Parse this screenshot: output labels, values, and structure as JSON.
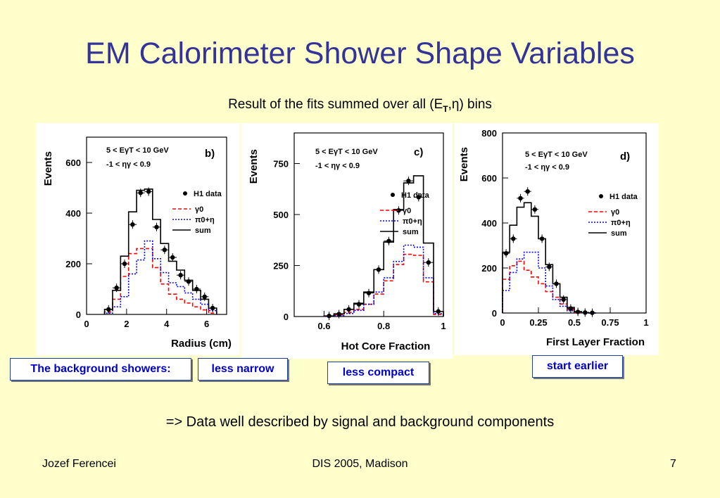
{
  "title": "EM Calorimeter Shower Shape Variables",
  "subtitle": {
    "prefix": "Result of the fits summed over all (E",
    "sub": "T",
    "suffix": ",η) bins"
  },
  "labels": {
    "background": "The background showers:",
    "narrow": "less narrow",
    "compact": "less compact",
    "earlier": "start earlier"
  },
  "conclusion": "=> Data well described by signal and background components",
  "footer": {
    "author": "Jozef Ferencei",
    "conference": "DIS 2005, Madison",
    "page": "7"
  },
  "colors": {
    "title": "#333399",
    "box_text": "#0000cc",
    "gamma": "#ff0000",
    "pi": "#0000ff"
  },
  "chart_data": [
    {
      "type": "histogram",
      "panel": "b)",
      "xlabel": "Radius (cm)",
      "ylabel": "Events",
      "xlim": [
        0,
        7
      ],
      "ylim": [
        0,
        700
      ],
      "xticks": [
        "0",
        "2",
        "4",
        "6"
      ],
      "yticks": [
        "0",
        "200",
        "400",
        "600"
      ],
      "cuts": [
        "5 < EγT < 10 GeV",
        "-1 < ηγ < 0.9"
      ],
      "legend": [
        "H1 data",
        "γ0",
        "π0+η",
        "sum"
      ],
      "bin_edges": [
        0.9,
        1.3,
        1.7,
        2.1,
        2.5,
        2.9,
        3.3,
        3.7,
        4.1,
        4.5,
        4.9,
        5.3,
        5.7,
        6.1,
        6.5
      ],
      "series": [
        {
          "name": "H1 data",
          "style": "points",
          "x": [
            1.1,
            1.5,
            1.9,
            2.3,
            2.7,
            3.1,
            3.5,
            3.9,
            4.3,
            4.7,
            5.1,
            5.5,
            5.9,
            6.3
          ],
          "values": [
            20,
            105,
            200,
            355,
            480,
            485,
            345,
            255,
            225,
            155,
            130,
            100,
            70,
            25
          ]
        },
        {
          "name": "γ0",
          "style": "dashed",
          "values": [
            10,
            60,
            150,
            240,
            260,
            260,
            185,
            120,
            80,
            60,
            45,
            30,
            18,
            5
          ]
        },
        {
          "name": "π0+η",
          "style": "dotted",
          "values": [
            5,
            30,
            70,
            160,
            215,
            290,
            220,
            165,
            125,
            110,
            85,
            60,
            40,
            15
          ]
        },
        {
          "name": "sum",
          "style": "solid",
          "values": [
            20,
            95,
            230,
            405,
            490,
            495,
            375,
            280,
            210,
            175,
            135,
            95,
            60,
            25
          ]
        }
      ]
    },
    {
      "type": "histogram",
      "panel": "c)",
      "xlabel": "Hot Core Fraction",
      "ylabel": "Events",
      "xlim": [
        0.5,
        1.0
      ],
      "ylim": [
        0,
        900
      ],
      "xticks": [
        "0.6",
        "0.8",
        "1"
      ],
      "yticks": [
        "0",
        "250",
        "500",
        "750"
      ],
      "cuts": [
        "5 < EγT < 10 GeV",
        "-1 < ηγ < 0.9"
      ],
      "legend": [
        "H1 data",
        "γ0",
        "π0+η",
        "sum"
      ],
      "bin_edges": [
        0.6,
        0.633,
        0.667,
        0.7,
        0.733,
        0.767,
        0.8,
        0.833,
        0.867,
        0.9,
        0.933,
        0.967,
        1.0
      ],
      "series": [
        {
          "name": "H1 data",
          "style": "points",
          "x": [
            0.617,
            0.65,
            0.683,
            0.717,
            0.75,
            0.783,
            0.817,
            0.85,
            0.883,
            0.917,
            0.95,
            0.983
          ],
          "values": [
            3,
            12,
            35,
            60,
            115,
            230,
            370,
            520,
            665,
            585,
            265,
            25
          ]
        },
        {
          "name": "γ0",
          "style": "dashed",
          "values": [
            2,
            8,
            20,
            35,
            60,
            110,
            175,
            255,
            305,
            300,
            170,
            10
          ]
        },
        {
          "name": "π0+η",
          "style": "dotted",
          "values": [
            1,
            5,
            15,
            30,
            60,
            120,
            190,
            270,
            350,
            340,
            190,
            15
          ]
        },
        {
          "name": "sum",
          "style": "solid",
          "values": [
            3,
            13,
            35,
            65,
            120,
            230,
            365,
            525,
            655,
            690,
            360,
            25
          ]
        }
      ]
    },
    {
      "type": "histogram",
      "panel": "d)",
      "xlabel": "First Layer Fraction",
      "ylabel": "Events",
      "xlim": [
        0,
        1.0
      ],
      "ylim": [
        0,
        800
      ],
      "xticks": [
        "0",
        "0.25",
        "0.5",
        "0.75",
        "1"
      ],
      "yticks": [
        "0",
        "200",
        "400",
        "600",
        "800"
      ],
      "cuts": [
        "5 < EγT < 10 GeV",
        "-1 < ηγ < 0.9"
      ],
      "legend": [
        "H1 data",
        "γ0",
        "π0+η",
        "sum"
      ],
      "bin_edges": [
        0.0,
        0.05,
        0.1,
        0.15,
        0.2,
        0.25,
        0.3,
        0.35,
        0.4,
        0.45,
        0.5,
        0.55,
        0.6,
        0.65
      ],
      "series": [
        {
          "name": "H1 data",
          "style": "points",
          "x": [
            0.025,
            0.075,
            0.125,
            0.175,
            0.225,
            0.275,
            0.325,
            0.375,
            0.425,
            0.475,
            0.525,
            0.575,
            0.625
          ],
          "values": [
            265,
            330,
            510,
            540,
            460,
            330,
            205,
            130,
            60,
            20,
            5,
            2,
            1
          ]
        },
        {
          "name": "γ0",
          "style": "dashed",
          "values": [
            150,
            210,
            230,
            190,
            160,
            130,
            95,
            70,
            40,
            15,
            3,
            1,
            0
          ]
        },
        {
          "name": "π0+η",
          "style": "dotted",
          "values": [
            100,
            180,
            240,
            270,
            270,
            200,
            120,
            60,
            30,
            10,
            3,
            1,
            0
          ]
        },
        {
          "name": "sum",
          "style": "solid",
          "values": [
            270,
            390,
            470,
            490,
            430,
            330,
            215,
            130,
            70,
            25,
            6,
            2,
            0
          ]
        }
      ]
    }
  ]
}
